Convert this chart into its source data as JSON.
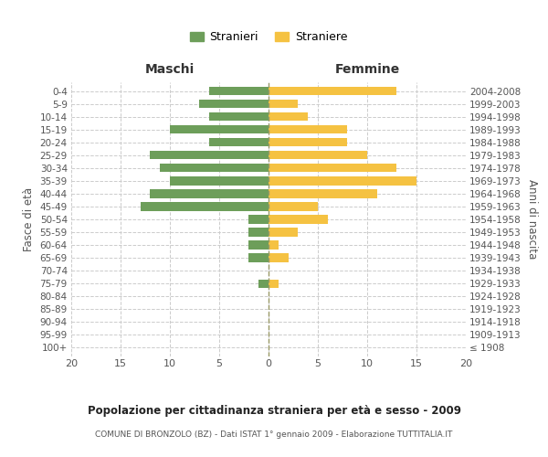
{
  "age_groups": [
    "100+",
    "95-99",
    "90-94",
    "85-89",
    "80-84",
    "75-79",
    "70-74",
    "65-69",
    "60-64",
    "55-59",
    "50-54",
    "45-49",
    "40-44",
    "35-39",
    "30-34",
    "25-29",
    "20-24",
    "15-19",
    "10-14",
    "5-9",
    "0-4"
  ],
  "birth_years": [
    "≤ 1908",
    "1909-1913",
    "1914-1918",
    "1919-1923",
    "1924-1928",
    "1929-1933",
    "1934-1938",
    "1939-1943",
    "1944-1948",
    "1949-1953",
    "1954-1958",
    "1959-1963",
    "1964-1968",
    "1969-1973",
    "1974-1978",
    "1979-1983",
    "1984-1988",
    "1989-1993",
    "1994-1998",
    "1999-2003",
    "2004-2008"
  ],
  "maschi": [
    0,
    0,
    0,
    0,
    0,
    1,
    0,
    2,
    2,
    2,
    2,
    13,
    12,
    10,
    11,
    12,
    6,
    10,
    6,
    7,
    6
  ],
  "femmine": [
    0,
    0,
    0,
    0,
    0,
    1,
    0,
    2,
    1,
    3,
    6,
    5,
    11,
    15,
    13,
    10,
    8,
    8,
    4,
    3,
    13
  ],
  "color_maschi": "#6d9e5a",
  "color_femmine": "#f5c242",
  "title": "Popolazione per cittadinanza straniera per età e sesso - 2009",
  "subtitle": "COMUNE DI BRONZOLO (BZ) - Dati ISTAT 1° gennaio 2009 - Elaborazione TUTTITALIA.IT",
  "xlabel_left": "Maschi",
  "xlabel_right": "Femmine",
  "ylabel_left": "Fasce di età",
  "ylabel_right": "Anni di nascita",
  "legend_maschi": "Stranieri",
  "legend_femmine": "Straniere",
  "xlim": 20,
  "background_color": "#ffffff",
  "grid_color": "#cccccc"
}
